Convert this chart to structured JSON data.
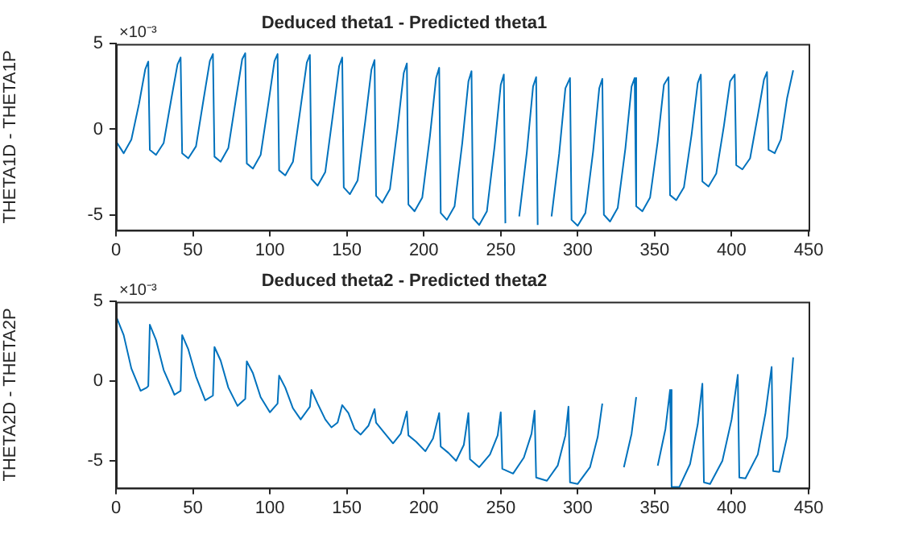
{
  "chart_data": [
    {
      "type": "line",
      "title": "Deduced theta1 - Predicted theta1",
      "ylabel": "THETA1D - THETA1P",
      "annotations": [
        "×10⁻³"
      ],
      "xlim": [
        0,
        450
      ],
      "xticks": [
        0,
        50,
        100,
        150,
        200,
        250,
        300,
        350,
        400,
        450
      ],
      "ylim": [
        -5.9,
        5
      ],
      "yticks": [
        -5,
        0,
        5
      ],
      "grid": false,
      "legend": false,
      "marker": "none",
      "line_style": "solid",
      "series": [
        {
          "color": "#0072bd",
          "x": [
            0,
            5,
            10,
            15,
            19,
            21,
            22,
            26,
            31,
            36,
            40,
            42,
            43,
            47,
            52,
            57,
            61,
            63,
            64,
            68,
            73,
            78,
            82,
            84,
            85,
            89,
            94,
            99,
            103,
            105,
            106,
            110,
            115,
            120,
            124,
            126,
            127,
            131,
            136,
            141,
            145,
            147,
            148,
            152,
            157,
            162,
            166,
            168,
            169,
            173,
            178,
            183,
            187,
            189,
            190,
            194,
            199,
            204,
            208,
            210,
            211,
            215,
            220,
            225,
            229,
            231,
            232,
            236,
            241,
            246,
            250,
            252,
            253,
            257,
            262,
            267,
            271,
            273,
            274,
            278,
            283,
            288,
            292,
            295,
            296,
            300,
            305,
            310,
            314,
            316,
            317,
            321,
            326,
            331,
            335,
            337,
            338,
            342,
            347,
            352,
            356,
            359,
            360,
            364,
            369,
            374,
            378,
            380,
            381,
            385,
            390,
            395,
            399,
            402,
            403,
            407,
            412,
            417,
            421,
            423,
            424,
            428,
            432,
            436,
            440
          ],
          "values": [
            -0.7,
            -1.4,
            -0.6,
            1.5,
            3.5,
            3.96,
            -1.2,
            -1.5,
            -0.8,
            1.8,
            3.8,
            4.2,
            -1.4,
            -1.7,
            -1.0,
            1.8,
            4.0,
            4.4,
            -1.6,
            -1.9,
            -1.1,
            1.8,
            4.1,
            4.45,
            -2.0,
            -2.3,
            -1.5,
            1.5,
            4.0,
            4.4,
            -2.4,
            -2.7,
            -1.9,
            1.3,
            3.9,
            4.35,
            -2.9,
            -3.3,
            -2.5,
            0.9,
            3.7,
            4.2,
            -3.4,
            -3.8,
            -3.0,
            0.5,
            3.5,
            4.05,
            -3.9,
            -4.3,
            -3.5,
            0.1,
            3.3,
            3.85,
            -4.4,
            -4.8,
            -4.0,
            -0.4,
            3.0,
            3.6,
            -4.9,
            -5.3,
            -4.5,
            -0.8,
            2.8,
            3.4,
            -5.2,
            -5.6,
            -4.8,
            -1.0,
            2.6,
            3.2,
            -5.5,
            null,
            -5.1,
            -1.3,
            2.5,
            3.05,
            -5.6,
            null,
            -5.1,
            -1.4,
            2.4,
            3.0,
            -5.3,
            -5.65,
            -4.9,
            -1.3,
            2.4,
            2.95,
            -5.0,
            -5.4,
            -4.6,
            -1.1,
            2.5,
            3.0,
            -4.5,
            -4.8,
            -4.0,
            -0.7,
            2.6,
            3.05,
            -3.85,
            -4.15,
            -3.4,
            -0.3,
            2.7,
            3.2,
            -3.05,
            -3.35,
            -2.6,
            0.2,
            2.8,
            3.2,
            -2.1,
            -2.35,
            -1.7,
            0.8,
            2.9,
            3.35,
            -1.2,
            -1.4,
            -0.6,
            1.8,
            3.45
          ]
        }
      ]
    },
    {
      "type": "line",
      "title": "Deduced theta2 - Predicted theta2",
      "ylabel": "THETA2D - THETA2P",
      "annotations": [
        "×10⁻³"
      ],
      "xlim": [
        0,
        450
      ],
      "xticks": [
        0,
        50,
        100,
        150,
        200,
        250,
        300,
        350,
        400,
        450
      ],
      "ylim": [
        -6.7,
        5
      ],
      "yticks": [
        -5,
        0,
        5
      ],
      "grid": false,
      "legend": false,
      "marker": "none",
      "line_style": "solid",
      "series": [
        {
          "color": "#0072bd",
          "x": [
            0,
            5,
            10,
            16,
            20,
            21,
            22,
            26,
            31,
            38,
            42,
            43,
            47,
            52,
            58,
            63,
            64,
            68,
            73,
            79,
            84,
            85,
            89,
            94,
            100,
            105,
            106,
            110,
            115,
            120,
            126,
            127,
            131,
            136,
            140,
            144,
            147,
            151,
            155,
            159,
            164,
            168,
            169,
            174,
            180,
            185,
            189,
            190,
            195,
            201,
            206,
            210,
            211,
            216,
            221,
            226,
            229,
            230,
            236,
            243,
            248,
            250,
            251,
            258,
            265,
            270,
            272,
            273,
            280,
            287,
            292,
            294,
            295,
            300,
            308,
            313,
            316,
            317,
            322,
            330,
            335,
            338,
            339,
            344,
            352,
            357,
            360,
            361,
            366,
            373,
            378,
            381,
            382,
            386,
            394,
            400,
            404,
            405,
            409,
            417,
            422,
            426,
            427,
            431,
            436,
            440
          ],
          "values": [
            4.1,
            2.9,
            0.8,
            -0.6,
            -0.4,
            -0.3,
            3.55,
            2.6,
            0.7,
            -0.85,
            -0.6,
            2.9,
            2.0,
            0.3,
            -1.2,
            -0.9,
            2.15,
            1.3,
            -0.4,
            -1.55,
            -1.1,
            1.25,
            0.5,
            -1.0,
            -1.95,
            -1.4,
            0.35,
            -0.4,
            -1.7,
            -2.4,
            -1.6,
            -0.55,
            -1.4,
            -2.4,
            -2.9,
            -2.6,
            -1.5,
            -2.0,
            -3.0,
            -3.35,
            -2.8,
            -1.75,
            -2.6,
            -3.2,
            -3.9,
            -3.3,
            -1.9,
            -3.4,
            -3.8,
            -4.4,
            -3.6,
            -2.0,
            -4.1,
            -4.5,
            -5.0,
            -4.0,
            -2.0,
            -4.9,
            -5.4,
            -4.6,
            -3.4,
            -1.95,
            -5.5,
            -5.8,
            -4.8,
            -3.3,
            -1.85,
            -6.05,
            -6.25,
            -5.3,
            -3.4,
            -1.6,
            -6.35,
            -6.45,
            -5.4,
            -3.5,
            -1.4,
            null,
            null,
            -5.4,
            -3.3,
            -1.0,
            null,
            null,
            -5.3,
            -3.0,
            -0.55,
            -6.65,
            -6.65,
            -5.2,
            -2.7,
            -0.15,
            -6.35,
            -6.45,
            -5.0,
            -2.4,
            0.4,
            -6.05,
            -6.1,
            -4.6,
            -2.0,
            0.9,
            -5.65,
            -5.7,
            -3.5,
            1.5
          ]
        }
      ]
    }
  ]
}
